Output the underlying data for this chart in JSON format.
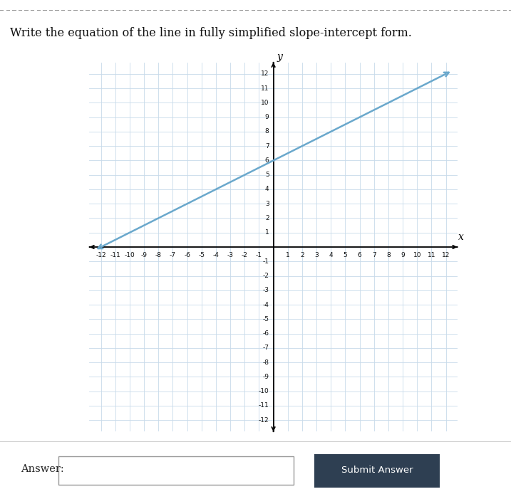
{
  "title": "Write the equation of the line in fully simplified slope-intercept form.",
  "title_bg": "#e8e8e8",
  "page_bg": "#ffffff",
  "graph_bg": "#ffffff",
  "grid_color": "#c8daea",
  "axis_color": "#000000",
  "line_color": "#6aa8cc",
  "slope": 0.5,
  "intercept": 6,
  "xmin": -12,
  "xmax": 12,
  "ymin": -12,
  "ymax": 12,
  "answer_label": "Answer:",
  "button_label": "Submit Answer",
  "button_bg": "#2e3f52",
  "bottom_bg": "#f0f0f0"
}
